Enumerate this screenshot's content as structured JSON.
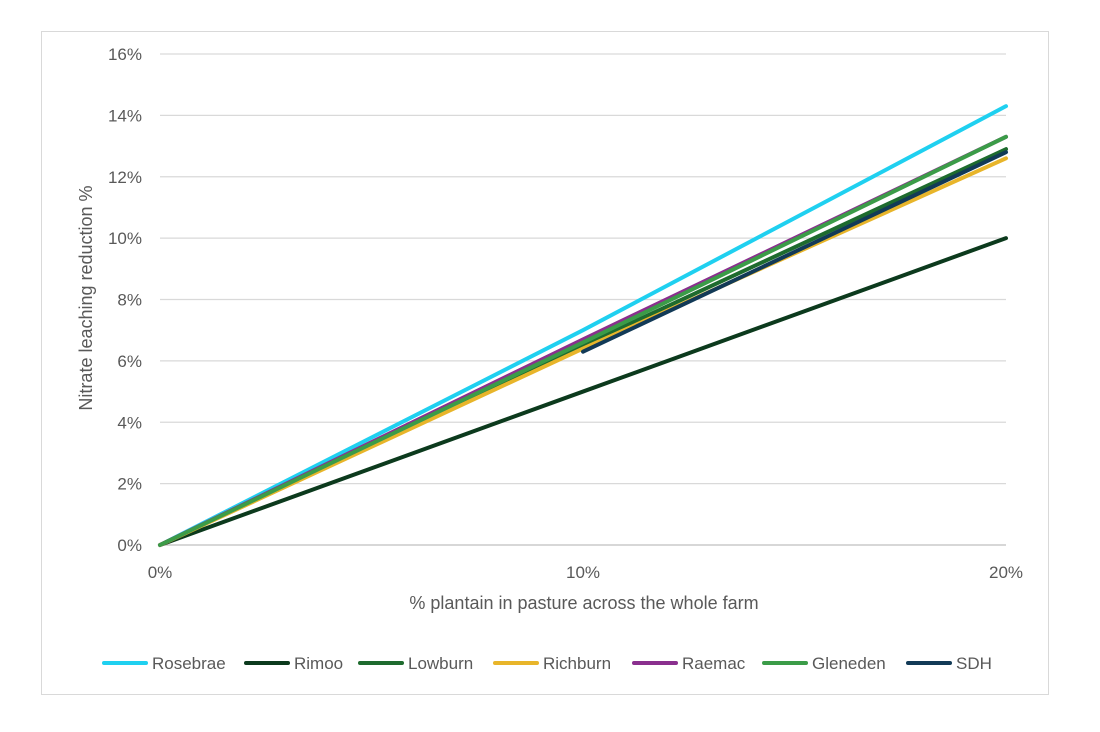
{
  "chart_data": {
    "type": "line",
    "title": "",
    "xlabel": "% plantain in pasture across the whole farm",
    "ylabel": "Nitrate leaching  reduction %",
    "xlim": [
      0,
      20
    ],
    "ylim": [
      0,
      16
    ],
    "x_ticks": [
      "0%",
      "10%",
      "20%"
    ],
    "y_ticks": [
      "0%",
      "2%",
      "4%",
      "6%",
      "8%",
      "10%",
      "12%",
      "14%",
      "16%"
    ],
    "grid": "horizontal",
    "legend_position": "bottom",
    "series": [
      {
        "name": "Rosebrae",
        "color": "#1fd0f0",
        "points": [
          [
            0,
            0
          ],
          [
            10,
            7.0
          ],
          [
            20,
            14.3
          ]
        ]
      },
      {
        "name": "Rimoo",
        "color": "#0c3a1d",
        "points": [
          [
            0,
            0
          ],
          [
            10,
            5.0
          ],
          [
            20,
            10.0
          ]
        ]
      },
      {
        "name": "Lowburn",
        "color": "#1e6b2e",
        "points": [
          [
            0,
            0
          ],
          [
            10,
            6.5
          ],
          [
            20,
            12.9
          ]
        ]
      },
      {
        "name": "Richburn",
        "color": "#e8b52a",
        "points": [
          [
            0,
            0
          ],
          [
            10,
            6.4
          ],
          [
            20,
            12.6
          ]
        ]
      },
      {
        "name": "Raemac",
        "color": "#8a2f8e",
        "points": [
          [
            0,
            0
          ],
          [
            10,
            6.7
          ],
          [
            20,
            13.3
          ]
        ]
      },
      {
        "name": "Gleneden",
        "color": "#3b9c48",
        "points": [
          [
            0,
            0
          ],
          [
            10,
            6.6
          ],
          [
            20,
            13.3
          ]
        ]
      },
      {
        "name": "SDH",
        "color": "#123a57",
        "points": [
          [
            10,
            6.3
          ],
          [
            20,
            12.8
          ]
        ]
      }
    ]
  }
}
